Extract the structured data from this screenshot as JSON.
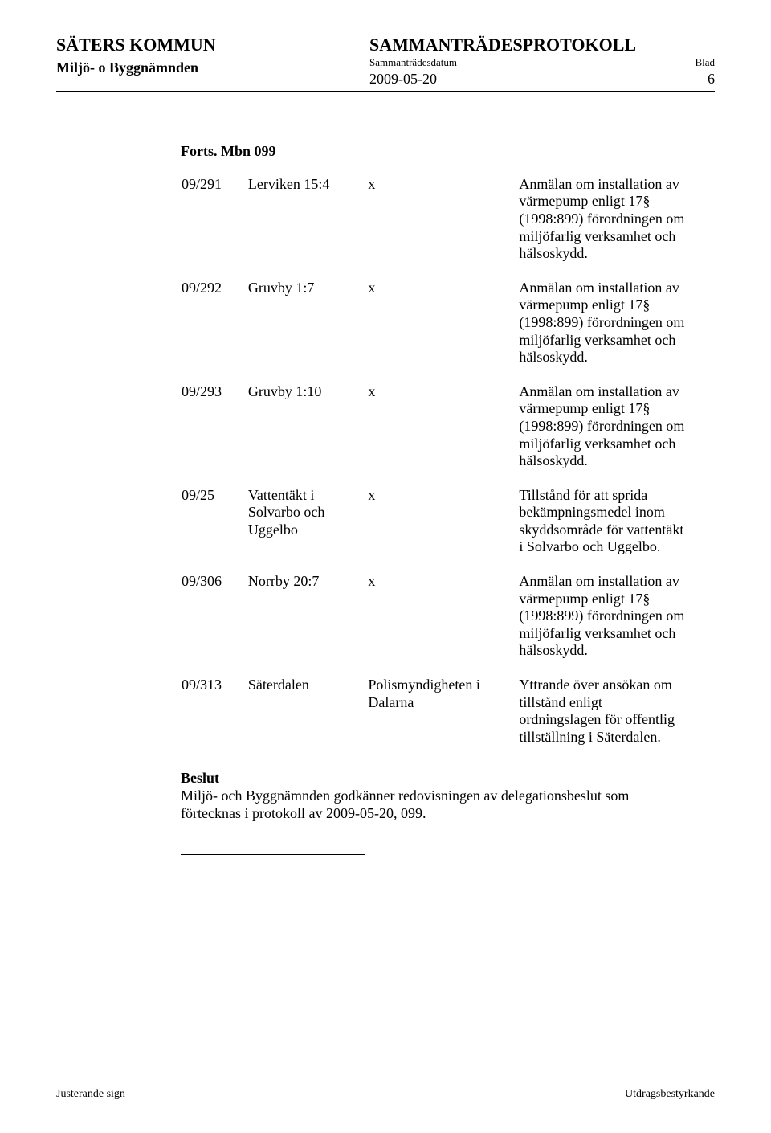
{
  "header": {
    "kommun": "SÄTERS KOMMUN",
    "namnden": "Miljö- o Byggnämnden",
    "title": "SAMMANTRÄDESPROTOKOLL",
    "sub_left": "Sammanträdesdatum",
    "sub_right": "Blad",
    "date": "2009-05-20",
    "page": "6"
  },
  "forts": "Forts. Mbn 099",
  "rows": [
    {
      "id": "09/291",
      "obj": "Lerviken 15:4",
      "x": "x",
      "desc": "Anmälan om installation av värmepump enligt 17§ (1998:899) förordningen om miljöfarlig verksamhet och hälsoskydd."
    },
    {
      "id": "09/292",
      "obj": "Gruvby 1:7",
      "x": "x",
      "desc": "Anmälan om installation av värmepump enligt 17§ (1998:899) förordningen om miljöfarlig verksamhet och hälsoskydd."
    },
    {
      "id": "09/293",
      "obj": "Gruvby 1:10",
      "x": "x",
      "desc": "Anmälan om installation av värmepump enligt 17§ (1998:899) förordningen om miljöfarlig verksamhet och hälsoskydd."
    },
    {
      "id": "09/25",
      "obj": "Vattentäkt i Solvarbo och Uggelbo",
      "x": "x",
      "desc": "Tillstånd för att sprida bekämpningsmedel inom skyddsområde för vattentäkt i Solvarbo och Uggelbo."
    },
    {
      "id": "09/306",
      "obj": "Norrby 20:7",
      "x": "x",
      "desc": "Anmälan om installation av värmepump enligt 17§ (1998:899) förordningen om miljöfarlig verksamhet och hälsoskydd."
    },
    {
      "id": "09/313",
      "obj": "Säterdalen",
      "x": "Polismyndigheten i Dalarna",
      "desc": "Yttrande över ansökan om tillstånd enligt ordningslagen för offentlig tillställning i Säterdalen."
    }
  ],
  "beslut": {
    "label": "Beslut",
    "text": "Miljö- och Byggnämnden godkänner redovisningen av delegationsbeslut som förtecknas i protokoll av 2009-05-20, 099."
  },
  "footer": {
    "left": "Justerande sign",
    "right": "Utdragsbestyrkande"
  }
}
